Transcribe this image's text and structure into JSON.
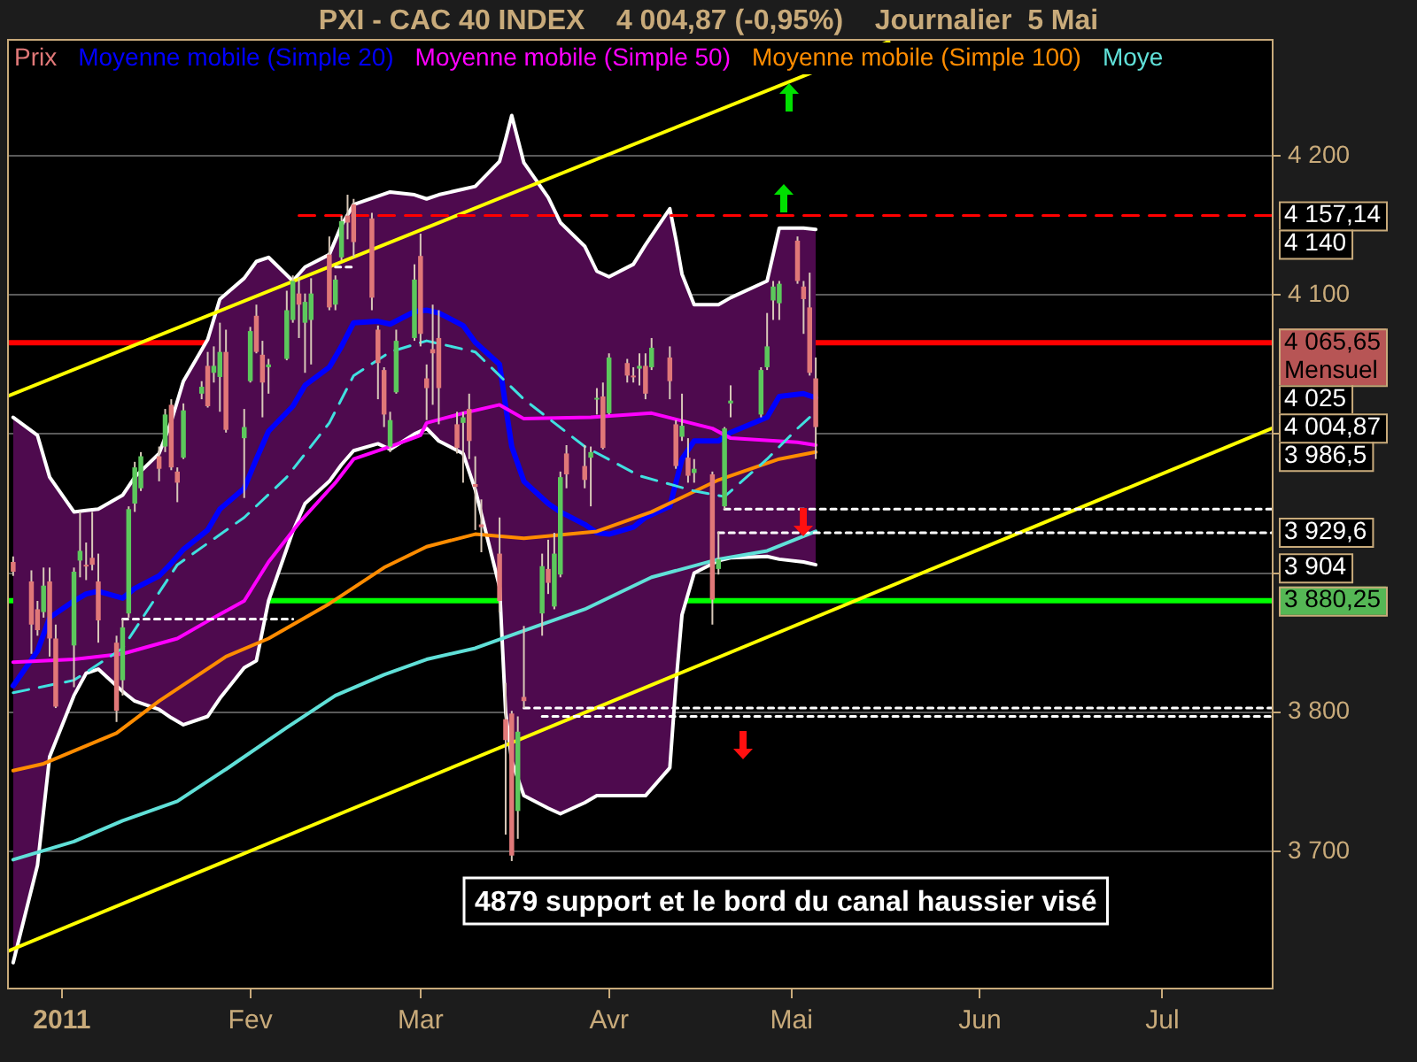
{
  "chart_data": {
    "type": "candlestick",
    "title": "PXI - CAC 40 INDEX    4 004,87 (-0,95%)    Journalier  5 Mai",
    "xlim": [
      "2010-12-23",
      "2011-07-19"
    ],
    "xticks": [
      {
        "value": "2011-01-01",
        "label": "2011"
      },
      {
        "value": "2011-02-01",
        "label": "Fev"
      },
      {
        "value": "2011-03-01",
        "label": "Mar"
      },
      {
        "value": "2011-04-01",
        "label": "Avr"
      },
      {
        "value": "2011-05-01",
        "label": "Mai"
      },
      {
        "value": "2011-06-01",
        "label": "Jun"
      },
      {
        "value": "2011-07-01",
        "label": "Jul"
      }
    ],
    "ylim": [
      3602,
      4284
    ],
    "yticks": [
      {
        "value": 3700,
        "label": "3 700"
      },
      {
        "value": 3800,
        "label": "3 800"
      },
      {
        "value": 3900,
        "label": null
      },
      {
        "value": 4000,
        "label": null
      },
      {
        "value": 4100,
        "label": "4 100"
      },
      {
        "value": 4200,
        "label": "4 200"
      }
    ],
    "y2lim": [
      3602,
      4284
    ],
    "y2ticks": [
      {
        "value": 4157.14,
        "label": "4 157,14"
      },
      {
        "value": 4140,
        "label": "4 140"
      },
      {
        "value": 4025,
        "label": "4 025"
      },
      {
        "value": 4004.87,
        "label": "4 004,87"
      },
      {
        "value": 3986.5,
        "label": "3 986,5"
      },
      {
        "value": 3929.6,
        "label": "3 929,6"
      },
      {
        "value": 3904,
        "label": "3 904"
      }
    ],
    "grid": "y",
    "legend": "top left",
    "series": [
      {
        "name": "Prix",
        "color": "#e07878",
        "x": [
          "2010-12-24",
          "2010-12-27",
          "2010-12-28",
          "2010-12-29",
          "2010-12-30",
          "2010-12-31",
          "2011-01-03",
          "2011-01-04",
          "2011-01-05",
          "2011-01-06",
          "2011-01-07",
          "2011-01-10",
          "2011-01-11",
          "2011-01-12",
          "2011-01-13",
          "2011-01-14",
          "2011-01-17",
          "2011-01-18",
          "2011-01-19",
          "2011-01-20",
          "2011-01-21",
          "2011-01-24",
          "2011-01-25",
          "2011-01-26",
          "2011-01-27",
          "2011-01-28",
          "2011-01-31",
          "2011-02-01",
          "2011-02-02",
          "2011-02-03",
          "2011-02-04",
          "2011-02-07",
          "2011-02-08",
          "2011-02-09",
          "2011-02-10",
          "2011-02-11",
          "2011-02-14",
          "2011-02-15",
          "2011-02-16",
          "2011-02-17",
          "2011-02-18",
          "2011-02-21",
          "2011-02-22",
          "2011-02-23",
          "2011-02-24",
          "2011-02-25",
          "2011-02-28",
          "2011-03-01",
          "2011-03-02",
          "2011-03-03",
          "2011-03-04",
          "2011-03-07",
          "2011-03-08",
          "2011-03-09",
          "2011-03-10",
          "2011-03-11",
          "2011-03-14",
          "2011-03-15",
          "2011-03-16",
          "2011-03-17",
          "2011-03-18",
          "2011-03-21",
          "2011-03-22",
          "2011-03-23",
          "2011-03-24",
          "2011-03-25",
          "2011-03-28",
          "2011-03-29",
          "2011-03-30",
          "2011-03-31",
          "2011-04-01",
          "2011-04-04",
          "2011-04-05",
          "2011-04-06",
          "2011-04-07",
          "2011-04-08",
          "2011-04-11",
          "2011-04-12",
          "2011-04-13",
          "2011-04-14",
          "2011-04-15",
          "2011-04-18",
          "2011-04-19",
          "2011-04-20",
          "2011-04-21",
          "2011-04-26",
          "2011-04-27",
          "2011-04-28",
          "2011-04-29",
          "2011-05-02",
          "2011-05-03",
          "2011-05-04",
          "2011-05-05"
        ],
        "ohlc": [
          [
            3908,
            3912,
            3898,
            3901
          ],
          [
            3894,
            3902,
            3842,
            3863
          ],
          [
            3874,
            3880,
            3855,
            3859
          ],
          [
            3872,
            3904,
            3868,
            3891
          ],
          [
            3894,
            3904,
            3840,
            3853
          ],
          [
            3853,
            3863,
            3803,
            3804
          ],
          [
            3848,
            3904,
            3818,
            3901
          ],
          [
            3909,
            3944,
            3897,
            3916
          ],
          [
            3906,
            3922,
            3895,
            3905
          ],
          [
            3911,
            3944,
            3902,
            3906
          ],
          [
            3894,
            3914,
            3850,
            3866
          ],
          [
            3850,
            3855,
            3793,
            3801
          ],
          [
            3823,
            3867,
            3812,
            3861
          ],
          [
            3871,
            3948,
            3868,
            3946
          ],
          [
            3950,
            3980,
            3944,
            3976
          ],
          [
            3961,
            3987,
            3959,
            3984
          ],
          [
            3984,
            3991,
            3966,
            3975
          ],
          [
            3991,
            4018,
            3987,
            4014
          ],
          [
            4021,
            4025,
            3974,
            3976
          ],
          [
            3973,
            3976,
            3951,
            3965
          ],
          [
            3983,
            4022,
            3982,
            4017
          ],
          [
            4029,
            4038,
            4025,
            4034
          ],
          [
            4049,
            4059,
            4019,
            4020
          ],
          [
            4044,
            4063,
            4037,
            4049
          ],
          [
            4041,
            4080,
            4016,
            4059
          ],
          [
            4059,
            4075,
            4001,
            4003
          ],
          [
            3997,
            4018,
            3954,
            4005
          ],
          [
            4038,
            4077,
            4037,
            4074
          ],
          [
            4085,
            4093,
            4058,
            4059
          ],
          [
            4057,
            4067,
            4012,
            4037
          ],
          [
            4048,
            4054,
            4029,
            4050
          ],
          [
            4054,
            4103,
            4053,
            4089
          ],
          [
            4082,
            4114,
            4080,
            4110
          ],
          [
            4101,
            4112,
            4069,
            4093
          ],
          [
            4080,
            4101,
            4044,
            4095
          ],
          [
            4082,
            4112,
            4050,
            4101
          ],
          [
            4129,
            4142,
            4089,
            4091
          ],
          [
            4093,
            4114,
            4089,
            4111
          ],
          [
            4127,
            4157,
            4125,
            4153
          ],
          [
            4157,
            4172,
            4140,
            4152
          ],
          [
            4165,
            4169,
            4127,
            4138
          ],
          [
            4155,
            4159,
            4089,
            4098
          ],
          [
            4075,
            4078,
            4025,
            4051
          ],
          [
            4046,
            4048,
            4005,
            4014
          ],
          [
            3991,
            4016,
            3987,
            4010
          ],
          [
            4030,
            4075,
            4029,
            4067
          ],
          [
            4069,
            4122,
            4067,
            4111
          ],
          [
            4128,
            4144,
            4063,
            4072
          ],
          [
            4040,
            4050,
            4010,
            4033
          ],
          [
            4061,
            4093,
            4021,
            4058
          ],
          [
            4069,
            4089,
            4007,
            4033
          ],
          [
            4007,
            4016,
            3986,
            3990
          ],
          [
            4008,
            4016,
            3965,
            4012
          ],
          [
            4018,
            4029,
            3982,
            3995
          ],
          [
            3964,
            3984,
            3931,
            3962
          ],
          [
            3935,
            3953,
            3915,
            3933
          ],
          [
            3914,
            3940,
            3872,
            3880
          ],
          [
            3795,
            3821,
            3712,
            3780
          ],
          [
            3799,
            3801,
            3693,
            3697
          ],
          [
            3729,
            3797,
            3709,
            3786
          ],
          [
            3811,
            3862,
            3803,
            3808
          ],
          [
            3871,
            3914,
            3855,
            3905
          ],
          [
            3903,
            3924,
            3885,
            3893
          ],
          [
            3876,
            3929,
            3874,
            3914
          ],
          [
            3899,
            3973,
            3897,
            3969
          ],
          [
            3986,
            3992,
            3961,
            3971
          ],
          [
            3977,
            3992,
            3961,
            3967
          ],
          [
            3983,
            3991,
            3948,
            3987
          ],
          [
            4025,
            4033,
            4014,
            4026
          ],
          [
            4027,
            4037,
            3989,
            3990
          ],
          [
            4015,
            4058,
            4014,
            4055
          ],
          [
            4051,
            4054,
            4037,
            4042
          ],
          [
            4042,
            4048,
            4037,
            4041
          ],
          [
            4047,
            4058,
            4035,
            4049
          ],
          [
            4049,
            4058,
            4025,
            4029
          ],
          [
            4048,
            4069,
            4046,
            4062
          ],
          [
            4055,
            4063,
            4025,
            4038
          ],
          [
            4007,
            4010,
            3975,
            3977
          ],
          [
            3998,
            4029,
            3995,
            4006
          ],
          [
            3983,
            3997,
            3965,
            3970
          ],
          [
            3972,
            3982,
            3965,
            3975
          ],
          [
            3971,
            3973,
            3863,
            3881
          ],
          [
            3903,
            3930,
            3899,
            3910
          ],
          [
            3948,
            4005,
            3946,
            4004
          ],
          [
            4022,
            4035,
            4012,
            4024
          ],
          [
            4014,
            4048,
            4012,
            4046
          ],
          [
            4048,
            4087,
            4046,
            4063
          ],
          [
            4096,
            4110,
            4082,
            4106
          ],
          [
            4094,
            4110,
            4082,
            4108
          ],
          [
            4139,
            4142,
            4108,
            4110
          ],
          [
            4106,
            4110,
            4072,
            4097
          ],
          [
            4091,
            4116,
            4042,
            4044
          ],
          [
            4040,
            4055,
            3982,
            4005
          ]
        ],
        "colors": [
          "#e07878",
          "#e07878",
          "#e07878",
          "#5cc85c",
          "#e07878",
          "#e07878",
          "#5cc85c",
          "#5cc85c",
          "#e07878",
          "#e07878",
          "#e07878",
          "#e07878",
          "#5cc85c",
          "#5cc85c",
          "#5cc85c",
          "#5cc85c",
          "#e07878",
          "#5cc85c",
          "#e07878",
          "#e07878",
          "#5cc85c",
          "#5cc85c",
          "#e07878",
          "#5cc85c",
          "#5cc85c",
          "#e07878",
          "#5cc85c",
          "#5cc85c",
          "#e07878",
          "#e07878",
          "#5cc85c",
          "#5cc85c",
          "#5cc85c",
          "#e07878",
          "#5cc85c",
          "#5cc85c",
          "#e07878",
          "#5cc85c",
          "#5cc85c",
          "#e07878",
          "#e07878",
          "#e07878",
          "#e07878",
          "#e07878",
          "#5cc85c",
          "#5cc85c",
          "#5cc85c",
          "#e07878",
          "#e07878",
          "#e07878",
          "#e07878",
          "#e07878",
          "#5cc85c",
          "#e07878",
          "#e07878",
          "#e07878",
          "#e07878",
          "#e07878",
          "#e07878",
          "#5cc85c",
          "#e07878",
          "#5cc85c",
          "#e07878",
          "#5cc85c",
          "#5cc85c",
          "#e07878",
          "#e07878",
          "#5cc85c",
          "#5cc85c",
          "#e07878",
          "#5cc85c",
          "#e07878",
          "#e07878",
          "#5cc85c",
          "#e07878",
          "#5cc85c",
          "#e07878",
          "#e07878",
          "#5cc85c",
          "#e07878",
          "#5cc85c",
          "#e07878",
          "#5cc85c",
          "#5cc85c",
          "#5cc85c",
          "#5cc85c",
          "#5cc85c",
          "#5cc85c",
          "#5cc85c",
          "#e07878",
          "#e07878",
          "#e07878",
          "#e07878"
        ]
      },
      {
        "type": "line",
        "name": "Moyenne mobile (Simple 20)",
        "color": "#0000ff",
        "x": [
          "2010-12-24",
          "2010-12-28",
          "2010-12-30",
          "2011-01-03",
          "2011-01-05",
          "2011-01-07",
          "2011-01-11",
          "2011-01-13",
          "2011-01-17",
          "2011-01-19",
          "2011-01-21",
          "2011-01-25",
          "2011-01-27",
          "2011-01-31",
          "2011-02-02",
          "2011-02-04",
          "2011-02-08",
          "2011-02-10",
          "2011-02-14",
          "2011-02-16",
          "2011-02-18",
          "2011-02-22",
          "2011-02-24",
          "2011-02-28",
          "2011-03-02",
          "2011-03-04",
          "2011-03-08",
          "2011-03-10",
          "2011-03-14",
          "2011-03-15",
          "2011-03-16",
          "2011-03-18",
          "2011-03-22",
          "2011-03-24",
          "2011-03-28",
          "2011-03-30",
          "2011-04-01",
          "2011-04-05",
          "2011-04-07",
          "2011-04-11",
          "2011-04-12",
          "2011-04-13",
          "2011-04-15",
          "2011-04-19",
          "2011-04-21",
          "2011-04-27",
          "2011-04-29",
          "2011-05-03",
          "2011-05-05"
        ],
        "values": [
          3819,
          3844,
          3868,
          3880,
          3885,
          3887,
          3882,
          3889,
          3898,
          3907,
          3917,
          3931,
          3946,
          3961,
          3982,
          4002,
          4020,
          4035,
          4048,
          4063,
          4080,
          4081,
          4079,
          4088,
          4089,
          4087,
          4078,
          4066,
          4050,
          4020,
          3991,
          3966,
          3950,
          3944,
          3935,
          3929,
          3928,
          3933,
          3940,
          3948,
          3965,
          3982,
          3995,
          3995,
          4001,
          4012,
          4027,
          4029,
          4026
        ],
        "upper": [
          4012,
          3999,
          3969,
          3944,
          3945,
          3946,
          3956,
          3969,
          3986,
          4009,
          4038,
          4068,
          4097,
          4112,
          4124,
          4127,
          4110,
          4120,
          4129,
          4150,
          4165,
          4171,
          4174,
          4172,
          4169,
          4172,
          4176,
          4178,
          4196,
          4212,
          4229,
          4195,
          4170,
          4152,
          4135,
          4117,
          4113,
          4122,
          4136,
          4162,
          4140,
          4115,
          4093,
          4093,
          4098,
          4110,
          4148,
          4148,
          4147
        ],
        "lower": [
          3620,
          3690,
          3768,
          3812,
          3828,
          3831,
          3815,
          3808,
          3802,
          3796,
          3791,
          3797,
          3810,
          3832,
          3837,
          3880,
          3930,
          3950,
          3966,
          3978,
          3988,
          3993,
          3989,
          4000,
          4004,
          3995,
          3986,
          3960,
          3890,
          3800,
          3765,
          3740,
          3731,
          3727,
          3735,
          3740,
          3740,
          3740,
          3740,
          3760,
          3820,
          3870,
          3900,
          3909,
          3911,
          3912,
          3910,
          3908,
          3906
        ]
      },
      {
        "type": "line",
        "color": "#ffffff",
        "x": [
          "2010-12-24",
          "2010-12-28",
          "2010-12-30",
          "2011-01-03",
          "2011-01-05",
          "2011-01-07",
          "2011-01-11",
          "2011-01-13",
          "2011-01-17",
          "2011-01-19",
          "2011-01-21",
          "2011-01-25",
          "2011-01-27",
          "2011-01-31",
          "2011-02-02",
          "2011-02-04",
          "2011-02-08",
          "2011-02-10",
          "2011-02-14",
          "2011-02-16",
          "2011-02-18",
          "2011-02-22",
          "2011-02-24",
          "2011-02-28",
          "2011-03-02",
          "2011-03-04",
          "2011-03-08",
          "2011-03-10",
          "2011-03-14",
          "2011-03-15",
          "2011-03-16",
          "2011-03-18",
          "2011-03-22",
          "2011-03-24",
          "2011-03-28",
          "2011-03-30",
          "2011-04-01",
          "2011-04-05",
          "2011-04-07",
          "2011-04-11",
          "2011-04-12",
          "2011-04-13",
          "2011-04-15",
          "2011-04-19",
          "2011-04-21",
          "2011-04-27",
          "2011-04-29",
          "2011-05-03",
          "2011-05-05"
        ],
        "values": [
          4012,
          3999,
          3969,
          3944,
          3945,
          3946,
          3956,
          3969,
          3986,
          4009,
          4038,
          4068,
          4097,
          4112,
          4124,
          4127,
          4110,
          4120,
          4129,
          4150,
          4165,
          4171,
          4174,
          4172,
          4169,
          4172,
          4176,
          4178,
          4196,
          4212,
          4229,
          4195,
          4170,
          4152,
          4135,
          4117,
          4113,
          4122,
          4136,
          4162,
          4140,
          4115,
          4093,
          4093,
          4098,
          4110,
          4148,
          4148,
          4147
        ]
      },
      {
        "type": "line",
        "color": "#ffffff",
        "x": [
          "2010-12-24",
          "2010-12-28",
          "2010-12-30",
          "2011-01-03",
          "2011-01-05",
          "2011-01-07",
          "2011-01-11",
          "2011-01-13",
          "2011-01-17",
          "2011-01-19",
          "2011-01-21",
          "2011-01-25",
          "2011-01-27",
          "2011-01-31",
          "2011-02-02",
          "2011-02-04",
          "2011-02-08",
          "2011-02-10",
          "2011-02-14",
          "2011-02-16",
          "2011-02-18",
          "2011-02-22",
          "2011-02-24",
          "2011-02-28",
          "2011-03-02",
          "2011-03-04",
          "2011-03-08",
          "2011-03-10",
          "2011-03-14",
          "2011-03-15",
          "2011-03-16",
          "2011-03-18",
          "2011-03-22",
          "2011-03-24",
          "2011-03-28",
          "2011-03-30",
          "2011-04-01",
          "2011-04-05",
          "2011-04-07",
          "2011-04-11",
          "2011-04-12",
          "2011-04-13",
          "2011-04-15",
          "2011-04-19",
          "2011-04-21",
          "2011-04-27",
          "2011-04-29",
          "2011-05-03",
          "2011-05-05"
        ],
        "values": [
          3620,
          3690,
          3768,
          3812,
          3828,
          3831,
          3815,
          3808,
          3802,
          3796,
          3791,
          3797,
          3810,
          3832,
          3837,
          3880,
          3930,
          3950,
          3966,
          3978,
          3988,
          3993,
          3989,
          4000,
          4004,
          3995,
          3986,
          3960,
          3890,
          3800,
          3765,
          3740,
          3731,
          3727,
          3735,
          3740,
          3740,
          3740,
          3740,
          3760,
          3820,
          3870,
          3900,
          3909,
          3911,
          3912,
          3910,
          3908,
          3906
        ]
      },
      {
        "type": "line",
        "name": "Moyenne mobile (Simple 50)",
        "color": "#ff00ff",
        "x": [
          "2010-12-24",
          "2011-01-03",
          "2011-01-11",
          "2011-01-20",
          "2011-01-26",
          "2011-01-31",
          "2011-02-04",
          "2011-02-09",
          "2011-02-15",
          "2011-02-18",
          "2011-02-24",
          "2011-03-01",
          "2011-03-02",
          "2011-03-08",
          "2011-03-14",
          "2011-03-18",
          "2011-03-29",
          "2011-04-08",
          "2011-04-18",
          "2011-04-21",
          "2011-05-02",
          "2011-05-05"
        ],
        "values": [
          3836,
          3838,
          3842,
          3853,
          3868,
          3880,
          3908,
          3936,
          3965,
          3982,
          3991,
          3999,
          4008,
          4015,
          4021,
          4011,
          4012,
          4015,
          4004,
          3997,
          3994,
          3992
        ]
      },
      {
        "type": "line",
        "name": "Moyenne mobile (Simple 100)",
        "color": "#ff8c00",
        "x": [
          "2010-12-24",
          "2010-12-29",
          "2011-01-10",
          "2011-01-17",
          "2011-01-28",
          "2011-02-04",
          "2011-02-14",
          "2011-02-23",
          "2011-03-02",
          "2011-03-10",
          "2011-03-18",
          "2011-03-30",
          "2011-04-08",
          "2011-04-19",
          "2011-04-29",
          "2011-05-05"
        ],
        "values": [
          3758,
          3763,
          3785,
          3808,
          3840,
          3853,
          3878,
          3904,
          3919,
          3928,
          3925,
          3930,
          3944,
          3967,
          3982,
          3987
        ]
      },
      {
        "type": "line",
        "name": "Moye",
        "color": "#60e0d8",
        "x": [
          "2010-12-24",
          "2011-01-03",
          "2011-01-11",
          "2011-01-20",
          "2011-01-28",
          "2011-02-07",
          "2011-02-15",
          "2011-02-23",
          "2011-03-02",
          "2011-03-10",
          "2011-03-17",
          "2011-03-28",
          "2011-04-08",
          "2011-04-19",
          "2011-04-27",
          "2011-05-05"
        ],
        "values": [
          3694,
          3707,
          3722,
          3736,
          3759,
          3789,
          3812,
          3827,
          3838,
          3846,
          3857,
          3874,
          3897,
          3910,
          3916,
          3930
        ]
      },
      {
        "type": "line",
        "color": "#40e0e0",
        "line_style": "dashed",
        "x": [
          "2010-12-24",
          "2011-01-03",
          "2011-01-11",
          "2011-01-20",
          "2011-01-31",
          "2011-02-07",
          "2011-02-14",
          "2011-02-18",
          "2011-02-24",
          "2011-03-02",
          "2011-03-10",
          "2011-03-18",
          "2011-03-28",
          "2011-04-06",
          "2011-04-15",
          "2011-04-20",
          "2011-04-27",
          "2011-05-02",
          "2011-05-05"
        ],
        "values": [
          3814,
          3823,
          3846,
          3906,
          3940,
          3969,
          4008,
          4042,
          4059,
          4067,
          4059,
          4025,
          3991,
          3970,
          3959,
          3955,
          3982,
          4004,
          4016
        ]
      },
      {
        "type": "line",
        "color": "#ffff00",
        "x": [
          "2010-12-23",
          "2011-05-17"
        ],
        "values": [
          4027,
          4282
        ]
      },
      {
        "type": "line",
        "color": "#ffff00",
        "x": [
          "2010-12-23",
          "2011-07-19"
        ],
        "values": [
          3628,
          4004
        ]
      },
      {
        "type": "line",
        "color": "#ff0000",
        "line_style": "dashed",
        "x": [
          "2011-02-09",
          "2011-07-19"
        ],
        "values": [
          4157.14,
          4157.14
        ]
      },
      {
        "type": "line",
        "color": "#ffffff",
        "line_style": "dotted",
        "x": [
          "2011-01-11",
          "2011-02-08"
        ],
        "values": [
          3867,
          3867
        ]
      },
      {
        "type": "line",
        "color": "#ffffff",
        "line_style": "dotted",
        "x": [
          "2011-02-15",
          "2011-02-18"
        ],
        "values": [
          4120,
          4120
        ]
      },
      {
        "type": "line",
        "color": "#ffffff",
        "line_style": "dotted",
        "x": [
          "2011-04-20",
          "2011-07-19"
        ],
        "values": [
          3946,
          3946
        ]
      },
      {
        "type": "line",
        "color": "#ffffff",
        "line_style": "dotted",
        "x": [
          "2011-04-19",
          "2011-07-19"
        ],
        "values": [
          3929,
          3929
        ]
      },
      {
        "type": "line",
        "color": "#ffffff",
        "line_style": "dotted",
        "x": [
          "2011-03-18",
          "2011-07-19"
        ],
        "values": [
          3803,
          3803
        ]
      },
      {
        "type": "line",
        "color": "#ffffff",
        "line_style": "dotted",
        "x": [
          "2011-03-21",
          "2011-07-19"
        ],
        "values": [
          3797,
          3797
        ]
      }
    ],
    "ref_lines": [
      {
        "axis": "y",
        "value": 4065.65,
        "label": "4 065,65\nMensuel",
        "color": "#ff0000"
      },
      {
        "axis": "y",
        "value": 3880.25,
        "label": "3 880,25",
        "color": "#00ff00"
      }
    ],
    "annotations": [
      "4879 support et le bord du canal haussier visé"
    ]
  }
}
